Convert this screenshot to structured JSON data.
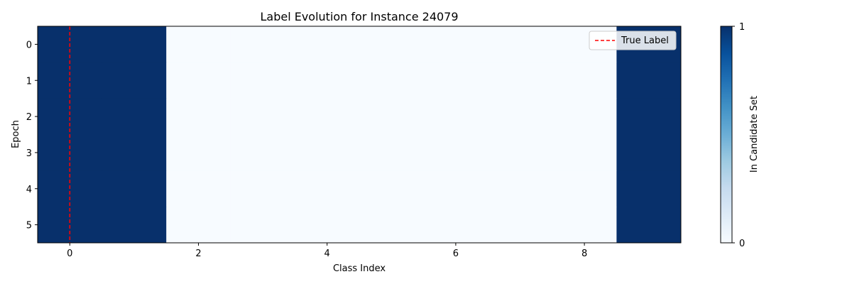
{
  "chart_data": {
    "type": "heatmap",
    "title": "Label Evolution for Instance 24079",
    "xlabel": "Class Index",
    "ylabel": "Epoch",
    "x_ticks": [
      0,
      2,
      4,
      6,
      8
    ],
    "y_ticks": [
      0,
      1,
      2,
      3,
      4,
      5
    ],
    "xlim": [
      -0.5,
      9.5
    ],
    "ylim": [
      5.5,
      -0.5
    ],
    "classes": [
      0,
      1,
      2,
      3,
      4,
      5,
      6,
      7,
      8,
      9
    ],
    "epochs": [
      0,
      1,
      2,
      3,
      4,
      5
    ],
    "values": [
      [
        1,
        1,
        0,
        0,
        0,
        0,
        0,
        0,
        0,
        1
      ],
      [
        1,
        1,
        0,
        0,
        0,
        0,
        0,
        0,
        0,
        1
      ],
      [
        1,
        1,
        0,
        0,
        0,
        0,
        0,
        0,
        0,
        1
      ],
      [
        1,
        1,
        0,
        0,
        0,
        0,
        0,
        0,
        0,
        1
      ],
      [
        1,
        1,
        0,
        0,
        0,
        0,
        0,
        0,
        0,
        1
      ],
      [
        1,
        1,
        0,
        0,
        0,
        0,
        0,
        0,
        0,
        1
      ]
    ],
    "true_label": 0,
    "legend": {
      "entries": [
        "True Label"
      ],
      "placement": "top-right"
    },
    "colorbar": {
      "label": "In Candidate Set",
      "ticks": [
        0,
        1
      ],
      "range": [
        0,
        1
      ],
      "colormap": "Blues"
    },
    "colors": {
      "high": "#08306b",
      "low": "#f7fbff",
      "true_label_line": "#ff0000"
    }
  }
}
